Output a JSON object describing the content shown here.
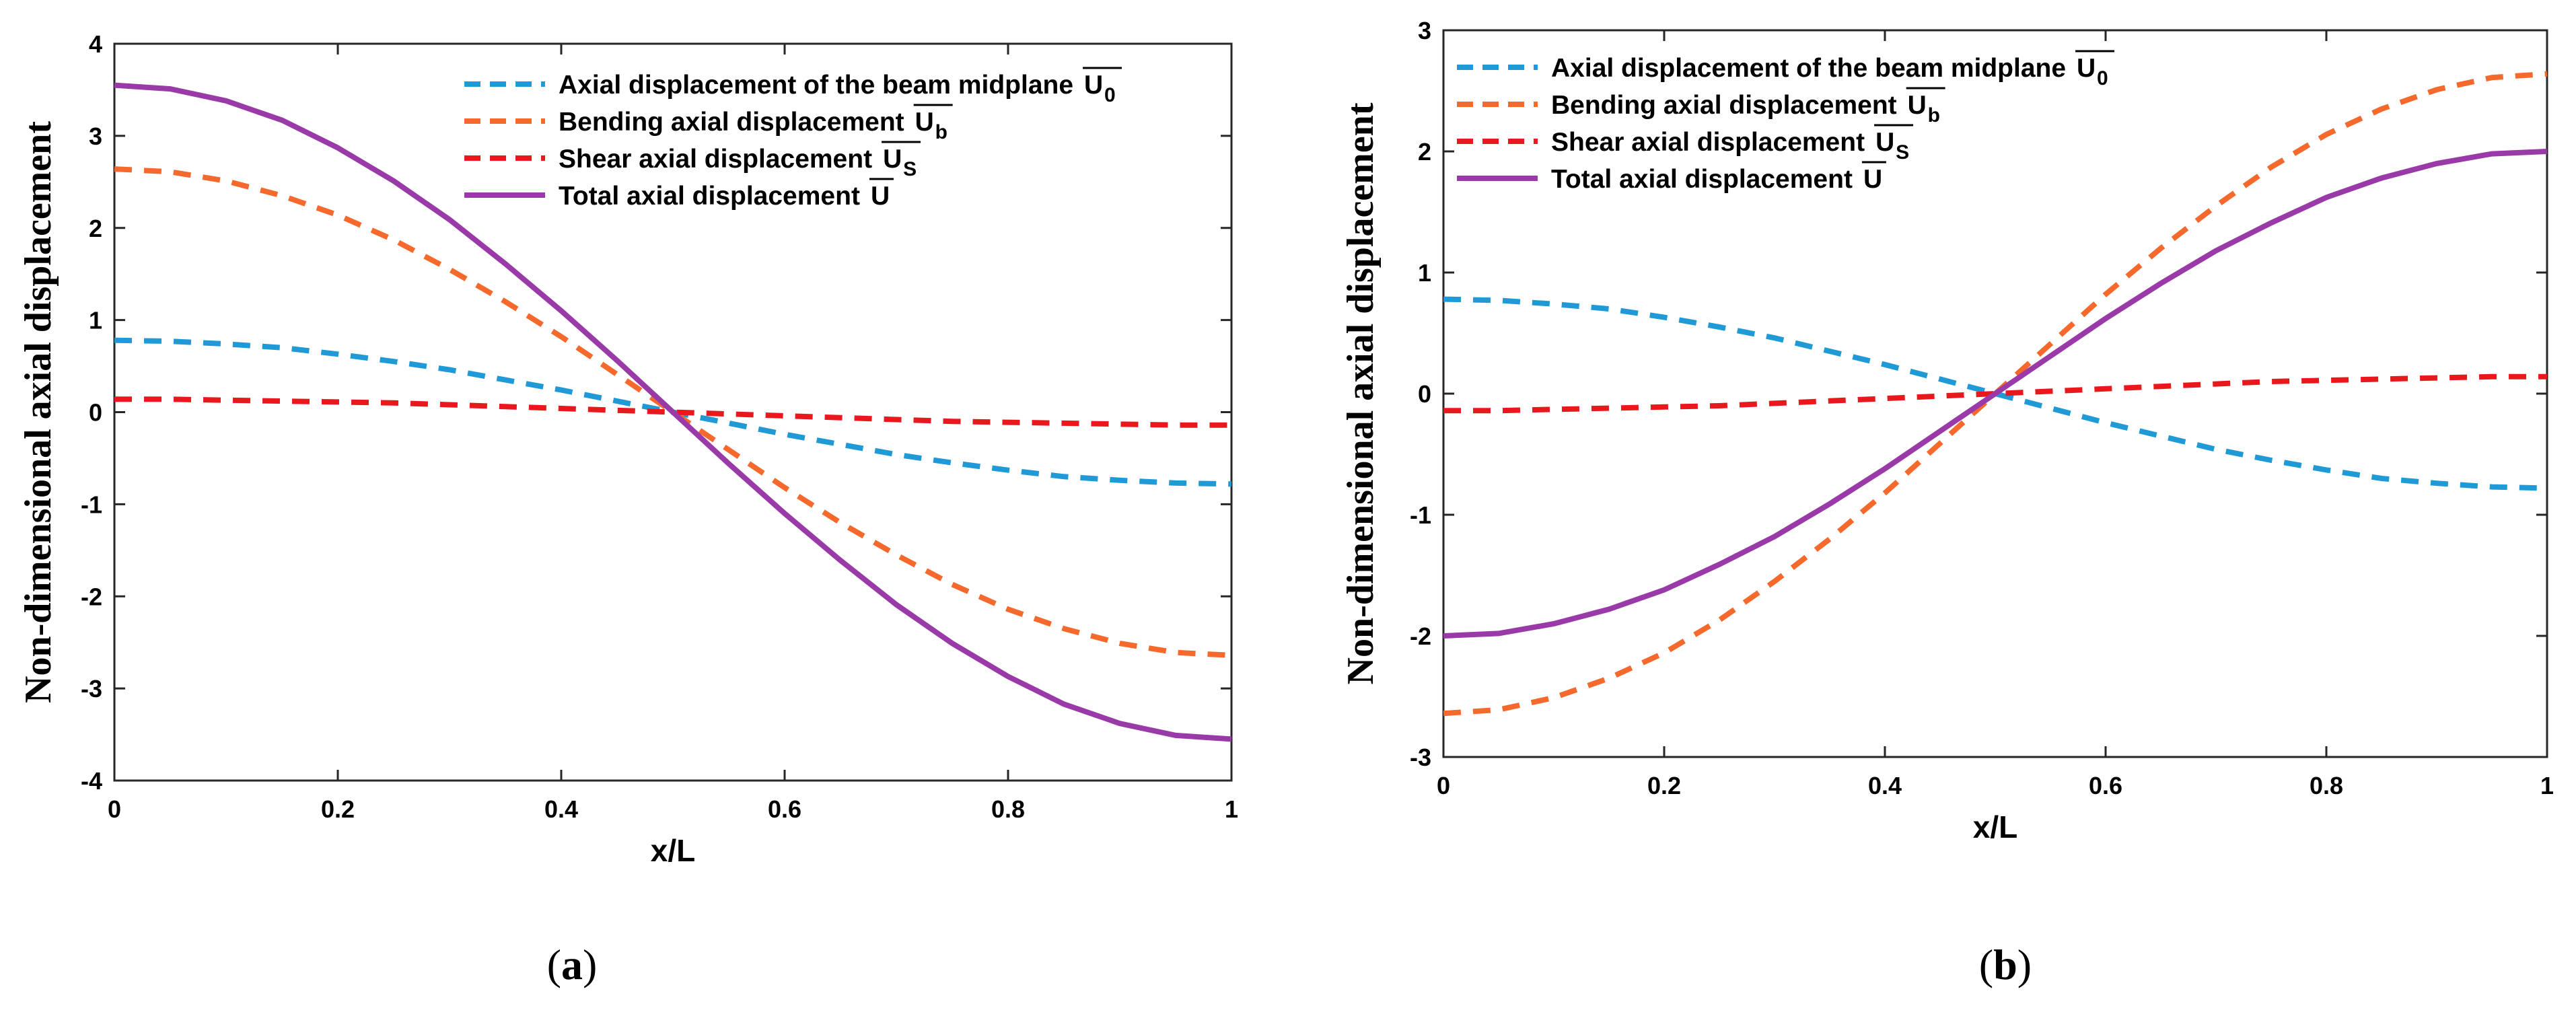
{
  "chart_data": [
    {
      "type": "line",
      "panel_label": {
        "open": "(",
        "letter": "a",
        "close": ")"
      },
      "xlabel": "x/L",
      "ylabel": "Non-dimensional axial displacement",
      "xlim": [
        0,
        1
      ],
      "ylim": [
        -4,
        4
      ],
      "xticks": [
        "0",
        "0.2",
        "0.4",
        "0.6",
        "0.8",
        "1"
      ],
      "yticks": [
        "-4",
        "-3",
        "-2",
        "-1",
        "0",
        "1",
        "2",
        "3",
        "4"
      ],
      "legend_position": "top-right",
      "grid": false,
      "x": [
        0,
        0.05,
        0.1,
        0.15,
        0.2,
        0.25,
        0.3,
        0.35,
        0.4,
        0.45,
        0.5,
        0.55,
        0.6,
        0.65,
        0.7,
        0.75,
        0.8,
        0.85,
        0.9,
        0.95,
        1
      ],
      "series": [
        {
          "name": "Axial displacement of the beam midplane",
          "symbol": "U",
          "subscript": "0",
          "color": "#1f9ad6",
          "dash": "dashed",
          "values": [
            0.78,
            0.77,
            0.74,
            0.7,
            0.63,
            0.55,
            0.46,
            0.35,
            0.24,
            0.12,
            0.0,
            -0.12,
            -0.24,
            -0.35,
            -0.46,
            -0.55,
            -0.63,
            -0.7,
            -0.74,
            -0.77,
            -0.78
          ]
        },
        {
          "name": "Bending axial displacement",
          "symbol": "U",
          "subscript": "b",
          "color": "#f5692c",
          "dash": "dashed",
          "values": [
            2.64,
            2.61,
            2.51,
            2.35,
            2.14,
            1.87,
            1.55,
            1.2,
            0.82,
            0.41,
            0.0,
            -0.41,
            -0.82,
            -1.2,
            -1.55,
            -1.87,
            -2.14,
            -2.35,
            -2.51,
            -2.61,
            -2.64
          ]
        },
        {
          "name": "Shear axial displacement",
          "symbol": "U",
          "subscript": "S",
          "color": "#e8181d",
          "dash": "dashed",
          "values": [
            0.14,
            0.14,
            0.13,
            0.12,
            0.11,
            0.1,
            0.08,
            0.06,
            0.04,
            0.02,
            0.0,
            -0.02,
            -0.04,
            -0.06,
            -0.08,
            -0.1,
            -0.11,
            -0.12,
            -0.13,
            -0.14,
            -0.14
          ]
        },
        {
          "name": "Total axial displacement",
          "symbol": "U",
          "subscript": "",
          "color": "#9a3aa8",
          "dash": "solid",
          "values": [
            3.55,
            3.51,
            3.38,
            3.17,
            2.87,
            2.51,
            2.09,
            1.61,
            1.1,
            0.56,
            0.0,
            -0.56,
            -1.1,
            -1.61,
            -2.09,
            -2.51,
            -2.87,
            -3.17,
            -3.38,
            -3.51,
            -3.55
          ]
        }
      ]
    },
    {
      "type": "line",
      "panel_label": {
        "open": "(",
        "letter": "b",
        "close": ")"
      },
      "xlabel": "x/L",
      "ylabel": "Non-dimensional axial displacement",
      "xlim": [
        0,
        1
      ],
      "ylim": [
        -3,
        3
      ],
      "xticks": [
        "0",
        "0.2",
        "0.4",
        "0.6",
        "0.8",
        "1"
      ],
      "yticks": [
        "-3",
        "-2",
        "-1",
        "0",
        "1",
        "2",
        "3"
      ],
      "legend_position": "top-left",
      "grid": false,
      "x": [
        0,
        0.05,
        0.1,
        0.15,
        0.2,
        0.25,
        0.3,
        0.35,
        0.4,
        0.45,
        0.5,
        0.55,
        0.6,
        0.65,
        0.7,
        0.75,
        0.8,
        0.85,
        0.9,
        0.95,
        1
      ],
      "series": [
        {
          "name": "Axial displacement of the beam midplane",
          "symbol": "U",
          "subscript": "0",
          "color": "#1f9ad6",
          "dash": "dashed",
          "values": [
            0.78,
            0.77,
            0.74,
            0.7,
            0.63,
            0.55,
            0.46,
            0.35,
            0.24,
            0.12,
            0.0,
            -0.12,
            -0.24,
            -0.35,
            -0.46,
            -0.55,
            -0.63,
            -0.7,
            -0.74,
            -0.77,
            -0.78
          ]
        },
        {
          "name": "Bending axial displacement",
          "symbol": "U",
          "subscript": "b",
          "color": "#f5692c",
          "dash": "dashed",
          "values": [
            -2.64,
            -2.61,
            -2.51,
            -2.35,
            -2.14,
            -1.87,
            -1.55,
            -1.2,
            -0.82,
            -0.41,
            0.0,
            0.41,
            0.82,
            1.2,
            1.55,
            1.87,
            2.14,
            2.35,
            2.51,
            2.61,
            2.64
          ]
        },
        {
          "name": "Shear axial displacement",
          "symbol": "U",
          "subscript": "S",
          "color": "#e8181d",
          "dash": "dashed",
          "values": [
            -0.14,
            -0.14,
            -0.13,
            -0.12,
            -0.11,
            -0.1,
            -0.08,
            -0.06,
            -0.04,
            -0.02,
            0.0,
            0.02,
            0.04,
            0.06,
            0.08,
            0.1,
            0.11,
            0.12,
            0.13,
            0.14,
            0.14
          ]
        },
        {
          "name": "Total axial displacement",
          "symbol": "U",
          "subscript": "",
          "color": "#9a3aa8",
          "dash": "solid",
          "values": [
            -2.0,
            -1.98,
            -1.9,
            -1.78,
            -1.62,
            -1.41,
            -1.18,
            -0.91,
            -0.62,
            -0.31,
            0.0,
            0.31,
            0.62,
            0.91,
            1.18,
            1.41,
            1.62,
            1.78,
            1.9,
            1.98,
            2.0
          ]
        }
      ]
    }
  ]
}
